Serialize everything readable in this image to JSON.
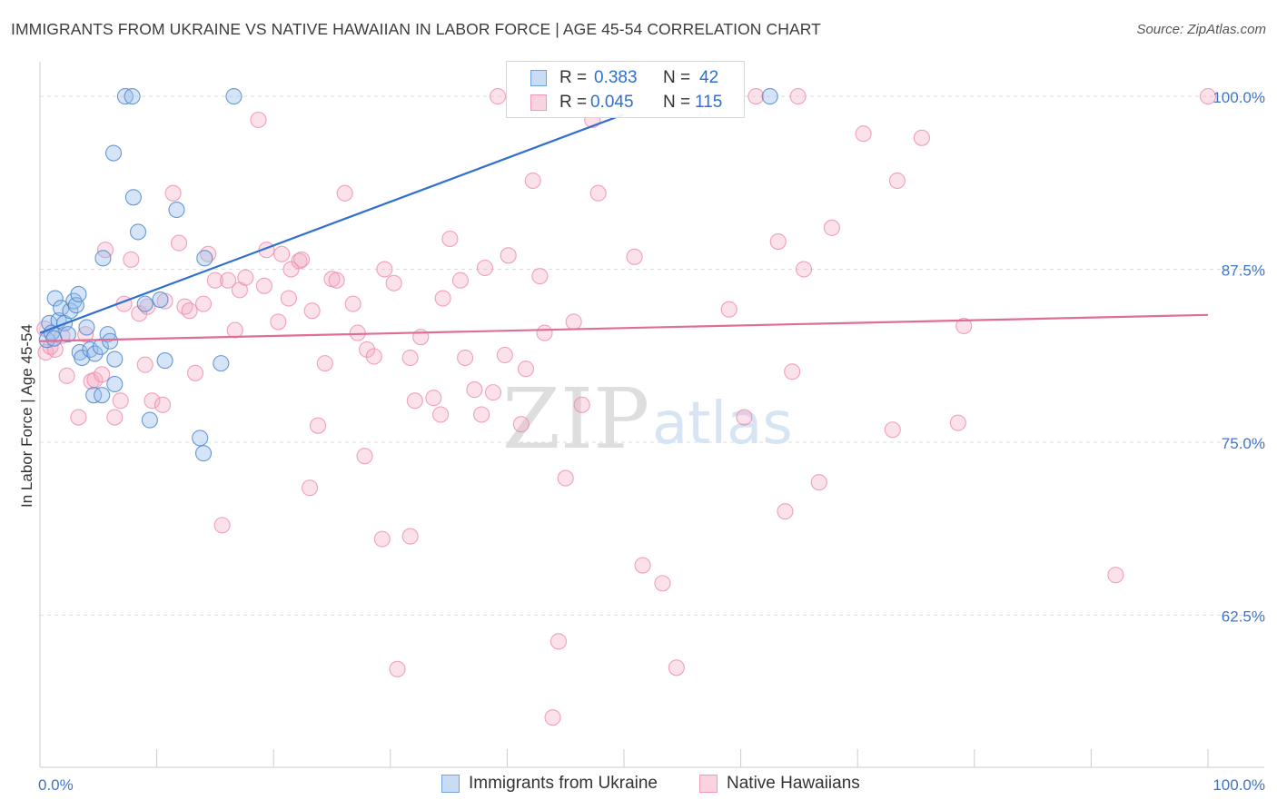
{
  "title": "IMMIGRANTS FROM UKRAINE VS NATIVE HAWAIIAN IN LABOR FORCE | AGE 45-54 CORRELATION CHART",
  "source": "Source: ZipAtlas.com",
  "watermark": {
    "zip": "ZIP",
    "atlas": "atlas"
  },
  "legend": {
    "rows": [
      {
        "r_label": "R =",
        "r_value": "0.383",
        "n_label": "N =",
        "n_value": "42",
        "color": "#6fa3e0"
      },
      {
        "r_label": "R =",
        "r_value": "0.045",
        "n_label": "N =",
        "n_value": "115",
        "color": "#f098b4"
      }
    ]
  },
  "bottom_legend": [
    {
      "label": "Immigrants from Ukraine",
      "color": "#6fa3e0"
    },
    {
      "label": "Native Hawaiians",
      "color": "#f098b4"
    }
  ],
  "colors": {
    "blue_line": "#2e6fcf",
    "pink_line": "#e06d98",
    "axis_text": "#3f74c9",
    "grid": "#dddddd"
  },
  "chart_data": {
    "type": "scatter",
    "title": "IMMIGRANTS FROM UKRAINE VS NATIVE HAWAIIAN IN LABOR FORCE | AGE 45-54 CORRELATION CHART",
    "xlabel": "",
    "ylabel": "In Labor Force | Age 45-54",
    "xlim": [
      0,
      100
    ],
    "ylim": [
      51.5,
      102.5
    ],
    "x_tick_labels": [
      "0.0%",
      "100.0%"
    ],
    "y_ticks": [
      62.5,
      75.0,
      87.5,
      100.0
    ],
    "y_tick_labels": [
      "62.5%",
      "75.0%",
      "87.5%",
      "100.0%"
    ],
    "grid": true,
    "legend_position": "top-center",
    "series": [
      {
        "name": "Immigrants from Ukraine",
        "color": "#6fa3e0",
        "trend": {
          "x": [
            0,
            50
          ],
          "y": [
            82.9,
            98.7
          ]
        },
        "points": [
          [
            0.6,
            82.4
          ],
          [
            0.8,
            83.6
          ],
          [
            1.0,
            82.9
          ],
          [
            1.2,
            82.5
          ],
          [
            1.3,
            85.4
          ],
          [
            1.6,
            83.8
          ],
          [
            1.8,
            84.7
          ],
          [
            2.1,
            83.6
          ],
          [
            2.4,
            82.8
          ],
          [
            2.6,
            84.5
          ],
          [
            2.9,
            85.2
          ],
          [
            3.1,
            84.9
          ],
          [
            3.3,
            85.7
          ],
          [
            3.4,
            81.5
          ],
          [
            3.6,
            81.1
          ],
          [
            4.0,
            83.3
          ],
          [
            4.3,
            81.7
          ],
          [
            4.6,
            78.4
          ],
          [
            4.7,
            81.4
          ],
          [
            5.2,
            81.9
          ],
          [
            5.3,
            78.4
          ],
          [
            5.8,
            82.8
          ],
          [
            6.0,
            82.3
          ],
          [
            6.4,
            79.2
          ],
          [
            6.4,
            81.0
          ],
          [
            5.4,
            88.3
          ],
          [
            6.3,
            95.9
          ],
          [
            7.3,
            100.0
          ],
          [
            7.9,
            100.0
          ],
          [
            8.0,
            92.7
          ],
          [
            8.4,
            90.2
          ],
          [
            9.0,
            85.0
          ],
          [
            9.4,
            76.6
          ],
          [
            10.3,
            85.3
          ],
          [
            10.7,
            80.9
          ],
          [
            11.7,
            91.8
          ],
          [
            13.7,
            75.3
          ],
          [
            14.0,
            74.2
          ],
          [
            14.1,
            88.3
          ],
          [
            15.5,
            80.7
          ],
          [
            16.6,
            100.0
          ],
          [
            62.5,
            100.0
          ]
        ]
      },
      {
        "name": "Native Hawaiians",
        "color": "#f098b4",
        "trend": {
          "x": [
            0,
            100
          ],
          "y": [
            82.3,
            84.2
          ]
        },
        "points": [
          [
            0.5,
            81.5
          ],
          [
            0.9,
            81.9
          ],
          [
            1.3,
            81.7
          ],
          [
            1.9,
            82.7
          ],
          [
            2.3,
            79.8
          ],
          [
            3.3,
            76.8
          ],
          [
            3.9,
            82.8
          ],
          [
            4.4,
            79.4
          ],
          [
            4.7,
            79.5
          ],
          [
            5.3,
            79.9
          ],
          [
            5.6,
            88.9
          ],
          [
            6.4,
            76.8
          ],
          [
            6.9,
            78.0
          ],
          [
            7.2,
            85.0
          ],
          [
            7.8,
            88.2
          ],
          [
            8.5,
            84.3
          ],
          [
            9.0,
            80.6
          ],
          [
            9.2,
            84.8
          ],
          [
            9.6,
            78.0
          ],
          [
            10.5,
            77.7
          ],
          [
            10.7,
            85.2
          ],
          [
            11.4,
            93.0
          ],
          [
            11.9,
            89.4
          ],
          [
            12.4,
            84.8
          ],
          [
            12.8,
            84.5
          ],
          [
            13.3,
            80.0
          ],
          [
            14.0,
            85.0
          ],
          [
            14.4,
            88.6
          ],
          [
            15.0,
            86.7
          ],
          [
            15.6,
            69.0
          ],
          [
            16.1,
            86.7
          ],
          [
            16.7,
            83.1
          ],
          [
            17.1,
            86.0
          ],
          [
            17.6,
            86.9
          ],
          [
            18.7,
            98.3
          ],
          [
            19.2,
            86.3
          ],
          [
            19.4,
            88.9
          ],
          [
            20.4,
            83.7
          ],
          [
            20.7,
            88.6
          ],
          [
            21.3,
            85.4
          ],
          [
            21.5,
            87.5
          ],
          [
            22.2,
            88.1
          ],
          [
            22.4,
            88.2
          ],
          [
            23.1,
            71.7
          ],
          [
            23.3,
            84.5
          ],
          [
            23.8,
            76.2
          ],
          [
            24.4,
            80.7
          ],
          [
            25.0,
            86.8
          ],
          [
            25.4,
            86.7
          ],
          [
            26.1,
            93.0
          ],
          [
            26.8,
            85.0
          ],
          [
            27.2,
            82.9
          ],
          [
            27.8,
            74.0
          ],
          [
            28.0,
            81.7
          ],
          [
            28.6,
            81.2
          ],
          [
            29.3,
            68.0
          ],
          [
            29.5,
            87.5
          ],
          [
            30.3,
            86.5
          ],
          [
            30.6,
            58.6
          ],
          [
            31.7,
            81.1
          ],
          [
            31.7,
            68.2
          ],
          [
            32.1,
            78.0
          ],
          [
            32.6,
            82.6
          ],
          [
            33.7,
            78.2
          ],
          [
            34.3,
            77.0
          ],
          [
            34.5,
            85.4
          ],
          [
            35.1,
            89.7
          ],
          [
            36.0,
            86.7
          ],
          [
            36.4,
            81.1
          ],
          [
            37.2,
            78.8
          ],
          [
            37.8,
            77.0
          ],
          [
            38.1,
            87.6
          ],
          [
            38.8,
            78.6
          ],
          [
            39.2,
            100.0
          ],
          [
            39.8,
            81.3
          ],
          [
            40.1,
            88.5
          ],
          [
            41.2,
            76.3
          ],
          [
            41.6,
            80.3
          ],
          [
            42.2,
            93.9
          ],
          [
            42.8,
            87.0
          ],
          [
            43.2,
            82.9
          ],
          [
            43.9,
            55.1
          ],
          [
            44.4,
            60.6
          ],
          [
            45.0,
            72.4
          ],
          [
            45.7,
            83.7
          ],
          [
            46.4,
            77.7
          ],
          [
            47.3,
            98.3
          ],
          [
            47.8,
            93.0
          ],
          [
            50.0,
            100.0
          ],
          [
            50.9,
            88.4
          ],
          [
            51.6,
            66.1
          ],
          [
            53.3,
            64.8
          ],
          [
            54.5,
            58.7
          ],
          [
            56.4,
            100.0
          ],
          [
            59.0,
            84.6
          ],
          [
            60.3,
            76.8
          ],
          [
            61.3,
            100.0
          ],
          [
            63.2,
            89.5
          ],
          [
            63.8,
            70.0
          ],
          [
            64.4,
            80.1
          ],
          [
            64.9,
            100.0
          ],
          [
            65.4,
            87.5
          ],
          [
            66.7,
            72.1
          ],
          [
            67.8,
            90.5
          ],
          [
            70.5,
            97.3
          ],
          [
            73.0,
            75.9
          ],
          [
            73.4,
            93.9
          ],
          [
            75.5,
            97.0
          ],
          [
            78.6,
            76.4
          ],
          [
            79.1,
            83.4
          ],
          [
            92.1,
            65.4
          ],
          [
            100.0,
            100.0
          ],
          [
            0.4,
            83.2
          ]
        ]
      }
    ]
  }
}
